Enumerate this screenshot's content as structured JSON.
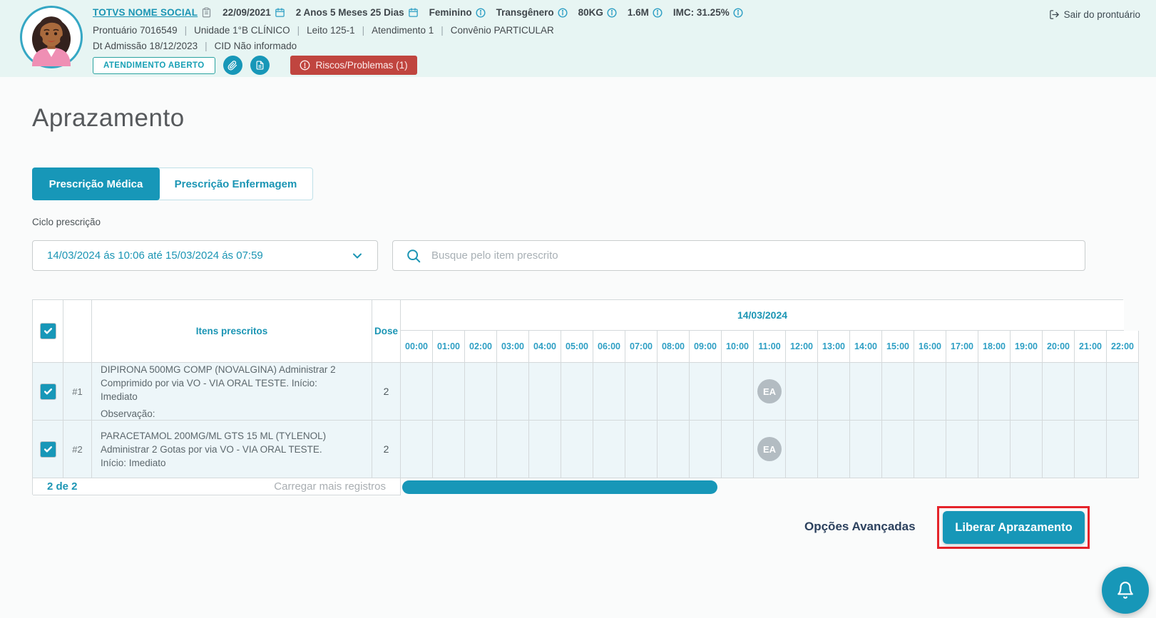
{
  "misc": {
    "separator": "|"
  },
  "header": {
    "name": "TOTVS NOME SOCIAL",
    "birth_date": "22/09/2021",
    "age": "2 Anos 5 Meses 25 Dias",
    "sex": "Feminino",
    "gender_identity": "Transgênero",
    "weight": "80KG",
    "height": "1.6M",
    "bmi": "IMC: 31.25%",
    "exit": "Sair do prontuário",
    "record": "Prontuário 7016549",
    "unit": "Unidade 1°B CLÍNICO",
    "bed": "Leito 125-1",
    "attendance": "Atendimento 1",
    "insurance": "Convênio PARTICULAR",
    "admission": "Dt Admissão 18/12/2023",
    "cid": "CID Não informado",
    "status": "ATENDIMENTO ABERTO",
    "risks": "Riscos/Problemas (1)"
  },
  "page": {
    "title": "Aprazamento"
  },
  "tabs": {
    "medical": "Prescrição Médica",
    "nursing": "Prescrição Enfermagem"
  },
  "cycle": {
    "label": "Ciclo prescrição",
    "value": "14/03/2024 ás 10:06 até 15/03/2024 ás 07:59"
  },
  "search": {
    "placeholder": "Busque pelo item prescrito"
  },
  "table": {
    "items_header": "Itens prescritos",
    "dose_header": "Dose",
    "date": "14/03/2024",
    "hours": [
      "00:00",
      "01:00",
      "02:00",
      "03:00",
      "04:00",
      "05:00",
      "06:00",
      "07:00",
      "08:00",
      "09:00",
      "10:00",
      "11:00",
      "12:00",
      "13:00",
      "14:00",
      "15:00",
      "16:00",
      "17:00",
      "18:00",
      "19:00",
      "20:00",
      "21:00",
      "22:00"
    ],
    "rows": [
      {
        "num": "#1",
        "text": "DIPIRONA 500MG COMP (NOVALGINA) Administrar 2 Comprimido por via VO - VIA ORAL TESTE. Início: Imediato",
        "obs": "Observação:",
        "dose": "2",
        "marker": {
          "label": "EA",
          "hour_index": 11
        }
      },
      {
        "num": "#2",
        "text": "PARACETAMOL 200MG/ML GTS 15 ML (TYLENOL) Administrar 2 Gotas por via VO - VIA ORAL TESTE. Início: Imediato",
        "obs": "",
        "dose": "2",
        "marker": {
          "label": "EA",
          "hour_index": 11
        }
      }
    ],
    "footer": {
      "count": "2 de 2",
      "load_more": "Carregar mais registros"
    }
  },
  "actions": {
    "advanced": "Opções Avançadas",
    "release": "Liberar Aprazamento"
  },
  "colors": {
    "primary": "#1797b8",
    "header_bg": "#e7f5f3",
    "risk_red": "#c0453f",
    "highlight_red": "#e5242a",
    "row_tint": "#edf6f9",
    "marker_gray": "#b3bcc2"
  }
}
